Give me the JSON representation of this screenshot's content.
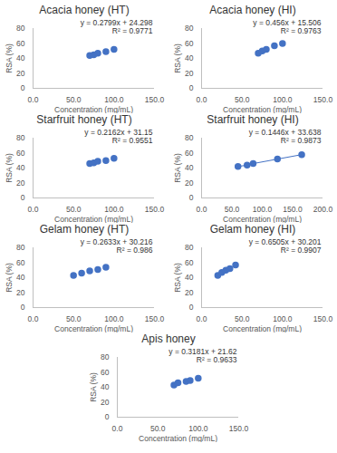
{
  "chart_data": [
    {
      "type": "scatter",
      "title": "Acacia honey (HT)",
      "x_label": "Concentration (mg/mL)",
      "y_label": "RSA (%)",
      "x": [
        70,
        75,
        80,
        90,
        100
      ],
      "values": [
        44,
        45,
        47,
        49,
        52
      ],
      "color": "#4472c4",
      "marker": "circle",
      "xlim": [
        0,
        150
      ],
      "xticks": [
        {
          "value": 0,
          "label": "0.0"
        },
        {
          "value": 50,
          "label": "50.0"
        },
        {
          "value": 100,
          "label": "100.0"
        },
        {
          "value": 150,
          "label": "150.0"
        }
      ],
      "ylim": [
        0,
        80
      ],
      "yticks": [
        0,
        20,
        40,
        60,
        80
      ],
      "grid": false,
      "annotations": [
        "y = 0.2799x + 24.298",
        "R² = 0.9771"
      ]
    },
    {
      "type": "scatter",
      "title": "Acacia honey (HI)",
      "x_label": "Concentration (mg/mL)",
      "y_label": "RSA (%)",
      "x": [
        70,
        75,
        80,
        90,
        100
      ],
      "values": [
        47,
        50,
        52,
        57,
        60
      ],
      "color": "#4472c4",
      "marker": "circle",
      "xlim": [
        0,
        150
      ],
      "xticks": [
        {
          "value": 0,
          "label": "0.0"
        },
        {
          "value": 50,
          "label": "50.0"
        },
        {
          "value": 100,
          "label": "100.0"
        },
        {
          "value": 150,
          "label": "150.0"
        }
      ],
      "ylim": [
        0,
        80
      ],
      "yticks": [
        0,
        20,
        40,
        60,
        80
      ],
      "grid": false,
      "annotations": [
        "y = 0.456x + 15.506",
        "R² = 0.9763"
      ]
    },
    {
      "type": "scatter",
      "title": "Starfruit honey (HT)",
      "x_label": "Concentration (mg/mL)",
      "y_label": "RSA (%)",
      "x": [
        70,
        75,
        80,
        90,
        100
      ],
      "values": [
        46,
        47,
        49,
        50,
        53
      ],
      "color": "#4472c4",
      "marker": "circle",
      "xlim": [
        0,
        150
      ],
      "xticks": [
        {
          "value": 0,
          "label": "0.0"
        },
        {
          "value": 50,
          "label": "50.0"
        },
        {
          "value": 100,
          "label": "100.0"
        },
        {
          "value": 150,
          "label": "150.0"
        }
      ],
      "ylim": [
        0,
        80
      ],
      "yticks": [
        0,
        20,
        40,
        60,
        80
      ],
      "grid": false,
      "annotations": [
        "y = 0.2162x + 31.15",
        "R² = 0.9551"
      ]
    },
    {
      "type": "line",
      "title": "Starfruit honey (HI)",
      "x_label": "Concentration (mg/mL)",
      "y_label": "RSA (%)",
      "x": [
        60,
        75,
        85,
        125,
        165
      ],
      "values": [
        42,
        44,
        46,
        52,
        58
      ],
      "color": "#4472c4",
      "marker": "circle",
      "xlim": [
        0,
        200
      ],
      "xticks": [
        {
          "value": 0,
          "label": "0.0"
        },
        {
          "value": 50,
          "label": "50.0"
        },
        {
          "value": 100,
          "label": "100.0"
        },
        {
          "value": 150,
          "label": "150.0"
        },
        {
          "value": 200,
          "label": "200.0"
        }
      ],
      "ylim": [
        0,
        80
      ],
      "yticks": [
        0,
        20,
        40,
        60,
        80
      ],
      "grid": false,
      "annotations": [
        "y = 0.1446x + 33.638",
        "R² = 0.9873"
      ]
    },
    {
      "type": "scatter",
      "title": "Gelam honey (HT)",
      "x_label": "Concentration (mg/mL)",
      "y_label": "RSA (%)",
      "x": [
        50,
        60,
        70,
        80,
        90
      ],
      "values": [
        43,
        46,
        49,
        51,
        54
      ],
      "color": "#4472c4",
      "marker": "circle",
      "xlim": [
        0,
        150
      ],
      "xticks": [
        {
          "value": 0,
          "label": "0.0"
        },
        {
          "value": 50,
          "label": "50.0"
        },
        {
          "value": 100,
          "label": "100.0"
        },
        {
          "value": 150,
          "label": "150.0"
        }
      ],
      "ylim": [
        0,
        80
      ],
      "yticks": [
        0,
        20,
        40,
        60,
        80
      ],
      "grid": false,
      "annotations": [
        "y = 0.2633x + 30.216",
        "R² = 0.986"
      ]
    },
    {
      "type": "scatter",
      "title": "Gelam honey (HI)",
      "x_label": "Concentration (mg/mL)",
      "y_label": "RSA (%)",
      "x": [
        20,
        25,
        30,
        35,
        42
      ],
      "values": [
        43,
        47,
        50,
        52,
        57
      ],
      "color": "#4472c4",
      "marker": "circle",
      "xlim": [
        0,
        150
      ],
      "xticks": [
        {
          "value": 0,
          "label": "0.0"
        },
        {
          "value": 50,
          "label": "50.0"
        },
        {
          "value": 100,
          "label": "100.0"
        },
        {
          "value": 150,
          "label": "150.0"
        }
      ],
      "ylim": [
        0,
        80
      ],
      "yticks": [
        0,
        20,
        40,
        60,
        80
      ],
      "grid": false,
      "annotations": [
        "y = 0.6505x + 30.201",
        "R² = 0.9907"
      ]
    },
    {
      "type": "scatter",
      "title": "Apis honey",
      "x_label": "Concentration (mg/mL)",
      "y_label": "RSA (%)",
      "x": [
        70,
        75,
        85,
        90,
        100
      ],
      "values": [
        43,
        46,
        48,
        49,
        52
      ],
      "color": "#4472c4",
      "marker": "circle",
      "xlim": [
        0,
        150
      ],
      "xticks": [
        {
          "value": 0,
          "label": "0.0"
        },
        {
          "value": 50,
          "label": "50.0"
        },
        {
          "value": 100,
          "label": "100.0"
        },
        {
          "value": 150,
          "label": "150.0"
        }
      ],
      "ylim": [
        0,
        80
      ],
      "yticks": [
        0,
        20,
        40,
        60,
        80
      ],
      "grid": false,
      "annotations": [
        "y = 0.3181x + 21.62",
        "R² = 0.9633"
      ]
    }
  ]
}
